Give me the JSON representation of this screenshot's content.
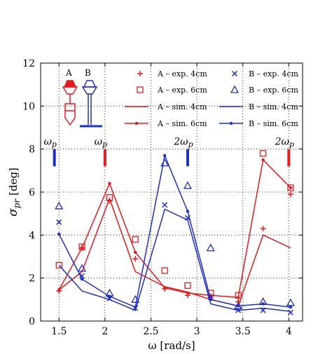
{
  "chart_data": {
    "type": "line",
    "xlabel": "ω [rad/s]",
    "ylabel": "σpr [deg]",
    "ylabel_main": "σ",
    "ylabel_sub": "pr",
    "ylabel_unit": "[deg]",
    "xlim": [
      1.3,
      4.15
    ],
    "ylim": [
      0,
      12
    ],
    "x_ticks": [
      1.5,
      2,
      2.5,
      3,
      3.5,
      4
    ],
    "x_tick_labels": [
      "1.5",
      "2",
      "2.5",
      "3",
      "3.5",
      "4"
    ],
    "y_ticks": [
      0,
      2,
      4,
      6,
      8,
      10,
      12
    ],
    "y_tick_labels": [
      "0",
      "2",
      "4",
      "6",
      "8",
      "10",
      "12"
    ],
    "grid": true,
    "legend_position": "top-right",
    "colors": {
      "A": "#e8191f",
      "B": "#1f2ec9"
    },
    "series": [
      {
        "name": "A – exp. 4cm",
        "color": "#e8191f",
        "kind": "marker",
        "marker": "plus",
        "x": [
          1.5,
          1.75,
          2.05,
          2.33,
          2.65,
          2.9,
          3.15,
          3.45,
          3.72,
          4.02
        ],
        "y": [
          1.4,
          3.4,
          5.6,
          2.9,
          1.5,
          1.2,
          1.1,
          0.9,
          4.3,
          5.9
        ]
      },
      {
        "name": "A – exp. 6cm",
        "color": "#e8191f",
        "kind": "marker",
        "marker": "square",
        "x": [
          1.5,
          1.75,
          2.05,
          2.33,
          2.65,
          2.9,
          3.15,
          3.45,
          3.72,
          4.02
        ],
        "y": [
          2.6,
          3.45,
          5.75,
          3.8,
          2.35,
          1.65,
          1.3,
          1.2,
          7.8,
          6.2
        ]
      },
      {
        "name": "A – sim. 4cm",
        "color": "#e8191f",
        "kind": "line",
        "x": [
          1.5,
          1.75,
          2.05,
          2.33,
          2.65,
          2.9,
          3.15,
          3.45,
          3.72,
          4.02
        ],
        "y": [
          1.45,
          2.3,
          5.7,
          2.3,
          1.6,
          1.35,
          1.0,
          0.7,
          4.0,
          3.4
        ]
      },
      {
        "name": "A – sim. 6cm",
        "color": "#e8191f",
        "kind": "line_marker",
        "x": [
          1.5,
          1.75,
          2.05,
          2.33,
          2.65,
          2.9,
          3.15,
          3.45,
          3.72,
          4.02
        ],
        "y": [
          1.45,
          3.4,
          6.4,
          3.2,
          1.55,
          1.3,
          1.2,
          1.1,
          7.5,
          6.2
        ]
      },
      {
        "name": "B – exp. 4cm",
        "color": "#1f2ec9",
        "kind": "marker",
        "marker": "x",
        "x": [
          1.5,
          1.75,
          2.05,
          2.33,
          2.65,
          2.9,
          3.15,
          3.45,
          3.72,
          4.02
        ],
        "y": [
          4.6,
          2.1,
          1.05,
          0.6,
          5.4,
          4.8,
          1.1,
          0.5,
          0.5,
          0.4
        ]
      },
      {
        "name": "B – exp. 6cm",
        "color": "#1f2ec9",
        "kind": "marker",
        "marker": "triangle",
        "x": [
          1.5,
          1.75,
          2.05,
          2.33,
          2.65,
          2.9,
          3.15,
          3.45,
          3.72,
          4.02
        ],
        "y": [
          5.35,
          2.45,
          1.3,
          1.0,
          7.35,
          6.3,
          3.4,
          0.7,
          0.9,
          0.85
        ]
      },
      {
        "name": "B – sim. 4cm",
        "color": "#1f2ec9",
        "kind": "line",
        "x": [
          1.5,
          1.75,
          2.05,
          2.33,
          2.65,
          2.9,
          3.15,
          3.45,
          3.72,
          4.02
        ],
        "y": [
          2.6,
          1.4,
          1.0,
          0.5,
          5.2,
          4.7,
          0.8,
          0.5,
          0.6,
          0.45
        ]
      },
      {
        "name": "B – sim. 6cm",
        "color": "#1f2ec9",
        "kind": "line_marker",
        "x": [
          1.5,
          1.75,
          2.05,
          2.33,
          2.65,
          2.9,
          3.15,
          3.45,
          3.72,
          4.02
        ],
        "y": [
          4.05,
          1.95,
          1.15,
          0.65,
          7.7,
          5.1,
          1.0,
          0.7,
          0.8,
          0.65
        ]
      }
    ],
    "annotations": [
      {
        "text": "ω",
        "sub": "p",
        "x": 1.45,
        "y": 7.75,
        "color": "#1f2ec9",
        "bar_y": [
          7.2,
          8.0
        ]
      },
      {
        "text": "ω",
        "sub": "p",
        "x": 2.0,
        "y": 7.75,
        "color": "#e8191f",
        "bar_y": [
          7.2,
          8.0
        ]
      },
      {
        "text": "2ω",
        "sub": "p",
        "x": 2.9,
        "y": 7.75,
        "color": "#1f2ec9",
        "bar_y": [
          7.2,
          8.0
        ]
      },
      {
        "text": "2ω",
        "sub": "p",
        "x": 4.0,
        "y": 7.75,
        "color": "#e8191f",
        "bar_y": [
          7.2,
          8.0
        ]
      }
    ],
    "inset_labels": [
      "A",
      "B"
    ]
  }
}
